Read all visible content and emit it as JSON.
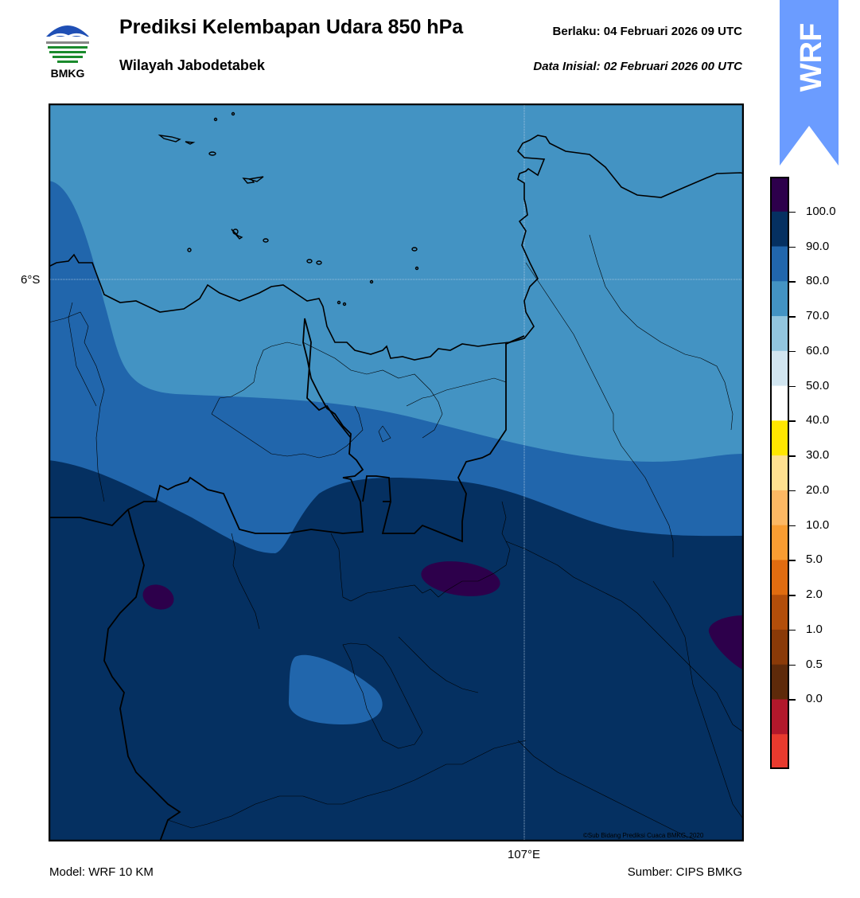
{
  "header": {
    "logo_text": "BMKG",
    "title": "Prediksi Kelembapan Udara 850 hPa",
    "subtitle": "Wilayah Jabodetabek",
    "valid_label": "Berlaku:  04 Februari 2026 09 UTC",
    "init_label": "Data Inisial:  02 Februari 2026 00 UTC"
  },
  "badge": {
    "text": "WRF",
    "color": "#6b9cff"
  },
  "map": {
    "lat_label": "6°S",
    "lon_label": "107°E",
    "copyright": "©Sub Bidang Prediksi Cuaca BMKG, 2020",
    "colors": {
      "band_70_80": "#4393c3",
      "band_80_90": "#2166ac",
      "band_90_100": "#053061",
      "band_100": "#2d004b"
    }
  },
  "colorbar": {
    "ticks": [
      "100.0",
      "90.0",
      "80.0",
      "70.0",
      "60.0",
      "50.0",
      "40.0",
      "30.0",
      "20.0",
      "10.0",
      "5.0",
      "2.0",
      "1.0",
      "0.5",
      "0.0"
    ],
    "colors": [
      "#2d004b",
      "#053061",
      "#2166ac",
      "#4393c3",
      "#92c5de",
      "#d1e5f0",
      "#ffffff",
      "#ffe600",
      "#fee090",
      "#fdb863",
      "#f99d32",
      "#e06c10",
      "#b34e0a",
      "#8a3a08",
      "#5e2a0a",
      "#b2182b",
      "#e83a2e"
    ]
  },
  "footer": {
    "model": "Model: WRF 10 KM",
    "source": "Sumber: CIPS BMKG"
  }
}
